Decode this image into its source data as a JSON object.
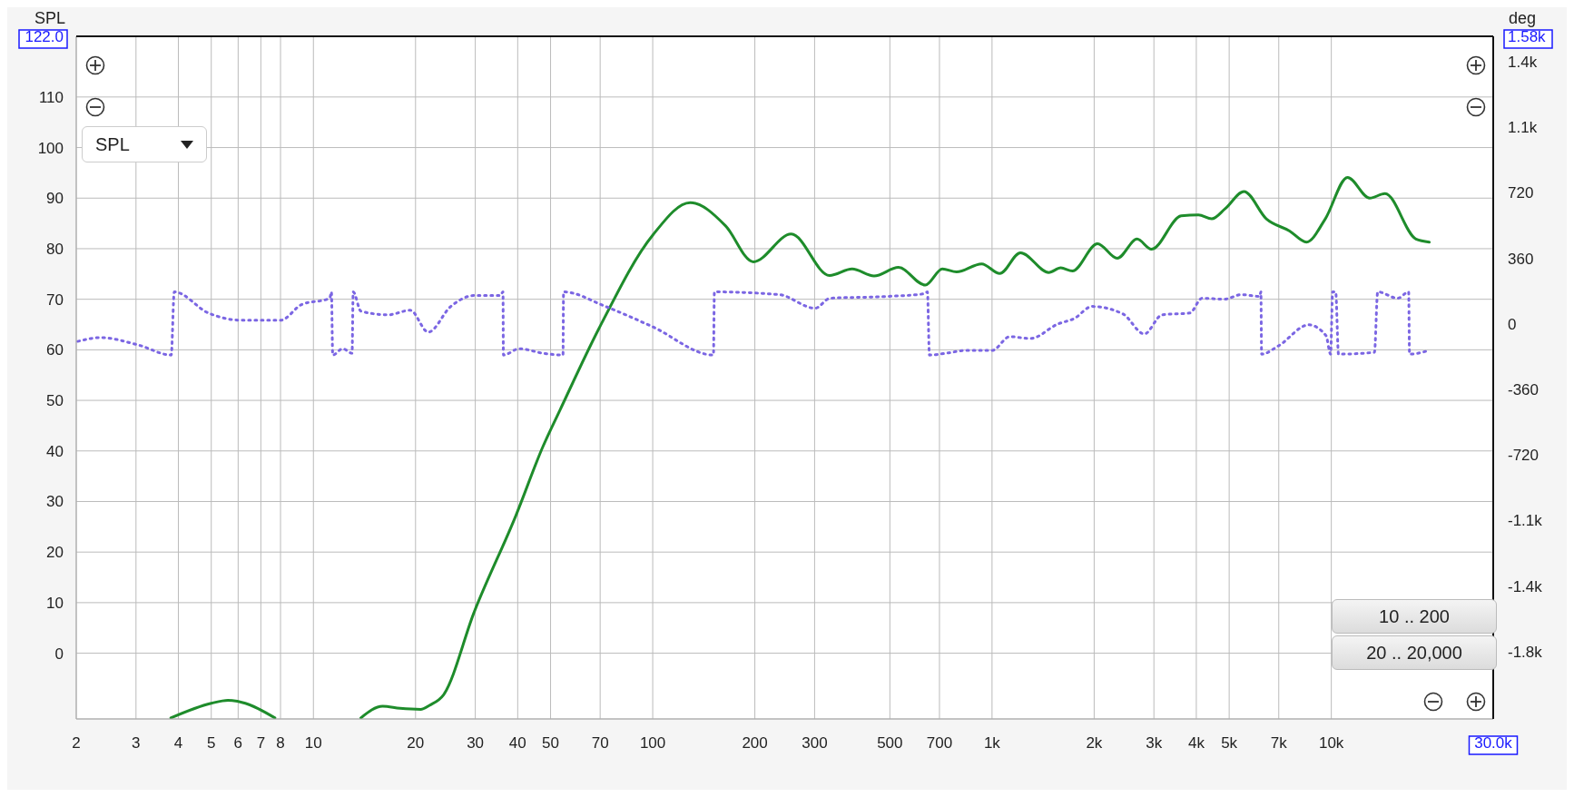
{
  "chart_data": {
    "type": "line",
    "ylabel": "SPL",
    "y2label": "deg",
    "xlim": [
      2,
      30000
    ],
    "log": "x",
    "xticks": [
      2,
      3,
      4,
      5,
      6,
      7,
      8,
      10,
      20,
      30,
      40,
      50,
      70,
      100,
      200,
      300,
      500,
      700,
      {
        "value": 1000,
        "label": "1k"
      },
      {
        "value": 2000,
        "label": "2k"
      },
      {
        "value": 3000,
        "label": "3k"
      },
      {
        "value": 4000,
        "label": "4k"
      },
      {
        "value": 5000,
        "label": "5k"
      },
      {
        "value": 7000,
        "label": "7k"
      },
      {
        "value": 10000,
        "label": "10k"
      },
      {
        "value": 30000,
        "label": "30.0k"
      }
    ],
    "ylim": [
      -13,
      122
    ],
    "yticks": [
      0,
      10,
      20,
      30,
      40,
      50,
      60,
      70,
      80,
      90,
      100,
      110,
      {
        "value": 122,
        "label": "122.0"
      }
    ],
    "y2lim": [
      -2170,
      1580
    ],
    "y2ticks": [
      {
        "value": -1800,
        "label": "-1.8k"
      },
      {
        "value": -1440,
        "label": "-1.4k"
      },
      {
        "value": -1080,
        "label": "-1.1k"
      },
      -720,
      -360,
      0,
      360,
      720,
      {
        "value": 1080,
        "label": "1.1k"
      },
      {
        "value": 1440,
        "label": "1.4k"
      },
      {
        "value": 1580,
        "label": "1.58k"
      }
    ],
    "grid": true,
    "legend": false,
    "marker": "none",
    "annotations": [
      "SPL",
      "10 .. 200",
      "20 .. 20,000"
    ],
    "series": [
      {
        "color": "#1e8c2b",
        "line_style": "solid",
        "x": [
          3.8,
          5,
          5.6,
          6.3,
          7.7,
          10,
          13.8,
          16,
          18,
          20.7,
          22,
          24.2,
          29.8,
          39.5,
          47.5,
          53.4,
          69.3,
          99.8,
          129,
          164,
          198,
          256,
          332,
          387,
          449,
          530,
          636,
          714,
          786,
          932,
          1054,
          1213,
          1470,
          1594,
          1726,
          2046,
          2340,
          2676,
          2950,
          3610,
          4058,
          4442,
          4866,
          5528,
          6434,
          7534,
          8448,
          9600,
          11160,
          12980,
          14400,
          17760,
          19440
        ],
        "values": [
          -12.8,
          -9.9,
          -9.3,
          -9.9,
          -12.8,
          null,
          -12.8,
          -10.5,
          -10.9,
          -11.1,
          -10.3,
          -8.2,
          8.2,
          27.2,
          40.9,
          48.2,
          64.1,
          82.6,
          89.1,
          84.5,
          77.4,
          82.9,
          74.7,
          76.0,
          74.6,
          76.3,
          72.8,
          76.0,
          75.4,
          77.0,
          75.1,
          79.2,
          75.3,
          76.2,
          75.6,
          81.0,
          78.1,
          81.9,
          79.9,
          86.5,
          86.7,
          85.9,
          87.9,
          91.3,
          85.9,
          83.5,
          81.3,
          85.9,
          94.1,
          90.0,
          90.9,
          81.9,
          81.3
        ]
      },
      {
        "color": "#7b66e3",
        "line_style": "dotted",
        "axis": "y2",
        "x": [
          2.02,
          2.36,
          3.05,
          3.81,
          3.89,
          4.9,
          6.19,
          8.0,
          9.22,
          11.17,
          11.3,
          11.4,
          12.2,
          13.0,
          13.1,
          13.8,
          16.6,
          19.3,
          21.8,
          25.4,
          29.8,
          35.6,
          36.2,
          36.3,
          40.4,
          47.5,
          54.4,
          54.6,
          72.6,
          99.8,
          151,
          152,
          236,
          301,
          333,
          492,
          633,
          645,
          654,
          732,
          835,
          1000,
          1128,
          1297,
          1565,
          1748,
          1973,
          2431,
          2811,
          3170,
          3830,
          4160,
          4830,
          5440,
          6150,
          6200,
          6230,
          6980,
          8580,
          9650,
          9950,
          10090,
          10300,
          10500,
          13400,
          13700,
          15700,
          16900,
          17000,
          19400
        ],
        "values": [
          -96,
          -75,
          -116,
          -171,
          176,
          60,
          20,
          20,
          106,
          141,
          176,
          -171,
          -136,
          -161,
          176,
          70,
          50,
          75,
          -45,
          96,
          156,
          156,
          176,
          -171,
          -136,
          -161,
          -171,
          176,
          96,
          -15,
          -171,
          176,
          161,
          86,
          141,
          151,
          166,
          176,
          -171,
          -161,
          -146,
          -146,
          -70,
          -80,
          0,
          30,
          96,
          55,
          -55,
          50,
          60,
          141,
          136,
          161,
          151,
          176,
          -166,
          -121,
          -5,
          -65,
          -166,
          176,
          176,
          -166,
          -156,
          176,
          141,
          176,
          -166,
          -146
        ]
      }
    ]
  }
}
